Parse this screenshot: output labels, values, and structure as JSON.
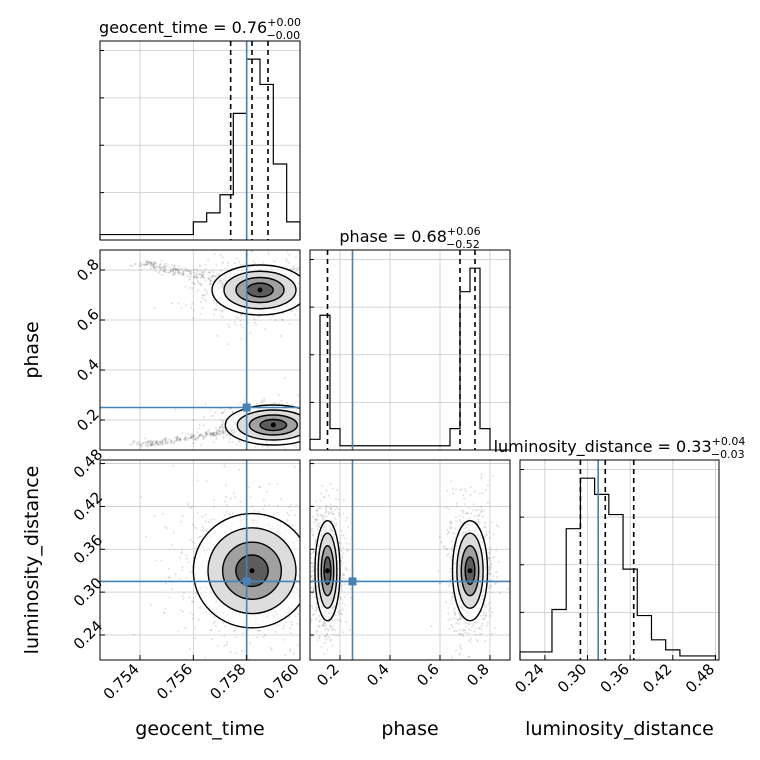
{
  "chart_data": {
    "type": "corner",
    "parameters": [
      "geocent_time",
      "phase",
      "luminosity_distance"
    ],
    "axis_labels": {
      "geocent_time": "geocent_time",
      "phase": "phase",
      "luminosity_distance": "luminosity_distance"
    },
    "ranges": {
      "geocent_time": [
        0.7525,
        0.76
      ],
      "phase": [
        0.08,
        0.88
      ],
      "luminosity_distance": [
        0.205,
        0.485
      ]
    },
    "ticks": {
      "geocent_time": [
        0.754,
        0.756,
        0.758,
        0.76
      ],
      "phase": [
        0.2,
        0.4,
        0.6,
        0.8
      ],
      "luminosity_distance": [
        0.24,
        0.3,
        0.36,
        0.42,
        0.48
      ]
    },
    "tick_labels": {
      "geocent_time": [
        "0.754",
        "0.756",
        "0.758",
        "0.760"
      ],
      "phase": [
        "0.2",
        "0.4",
        "0.6",
        "0.8"
      ],
      "luminosity_distance": [
        "0.24",
        "0.30",
        "0.36",
        "0.42",
        "0.48"
      ]
    },
    "truths": {
      "geocent_time": 0.758,
      "phase": 0.25,
      "luminosity_distance": 0.315
    },
    "truth_color": "#4682b4",
    "histograms": {
      "geocent_time": {
        "edges": [
          0.7525,
          0.756,
          0.7565,
          0.757,
          0.7575,
          0.758,
          0.7585,
          0.759,
          0.7595,
          0.76
        ],
        "counts": [
          3,
          10,
          15,
          25,
          70,
          100,
          86,
          42,
          10
        ],
        "quantiles": [
          0.7574,
          0.7582,
          0.7588
        ]
      },
      "phase": {
        "edges": [
          0.08,
          0.12,
          0.16,
          0.2,
          0.64,
          0.68,
          0.72,
          0.76,
          0.8
        ],
        "counts": [
          5,
          63,
          10,
          2,
          10,
          74,
          85,
          10
        ],
        "quantiles": [
          0.15,
          0.68,
          0.74
        ]
      },
      "luminosity_distance": {
        "edges": [
          0.205,
          0.25,
          0.27,
          0.29,
          0.31,
          0.33,
          0.35,
          0.37,
          0.39,
          0.41,
          0.43,
          0.48
        ],
        "counts": [
          4,
          25,
          65,
          90,
          82,
          72,
          45,
          22,
          10,
          5,
          2
        ],
        "quantiles": [
          0.29,
          0.325,
          0.365
        ]
      }
    },
    "titles": {
      "geocent_time": {
        "name": "geocent_time",
        "value": "0.76",
        "plus": "+0.00",
        "minus": "−0.00"
      },
      "phase": {
        "name": "phase",
        "value": "0.68",
        "plus": "+0.06",
        "minus": "−0.52"
      },
      "luminosity_distance": {
        "name": "luminosity_distance",
        "value": "0.33",
        "plus": "+0.04",
        "minus": "−0.03"
      }
    },
    "blobs_2d": {
      "phase_vs_geocent_time": [
        {
          "cx": 0.7585,
          "cy": 0.72,
          "sx": 0.0009,
          "sy": 0.05,
          "tail_to": [
            0.754,
            0.83
          ]
        },
        {
          "cx": 0.759,
          "cy": 0.18,
          "sx": 0.0009,
          "sy": 0.04,
          "tail_to": [
            0.754,
            0.1
          ]
        }
      ],
      "luminosity_distance_vs_geocent_time": [
        {
          "cx": 0.7582,
          "cy": 0.33,
          "sx": 0.0011,
          "sy": 0.04
        }
      ],
      "luminosity_distance_vs_phase": [
        {
          "cx": 0.15,
          "cy": 0.33,
          "sx": 0.025,
          "sy": 0.035
        },
        {
          "cx": 0.72,
          "cy": 0.33,
          "sx": 0.035,
          "sy": 0.035
        }
      ]
    },
    "grid": true,
    "legend": "none"
  }
}
